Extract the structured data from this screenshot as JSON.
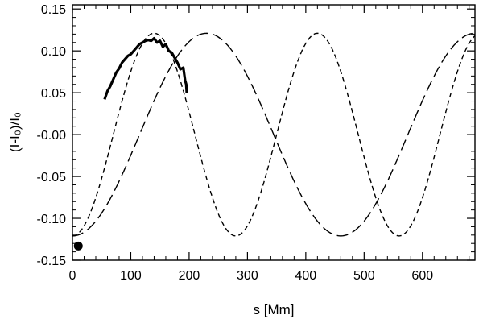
{
  "chart_data": {
    "type": "line",
    "xlabel": "s [Mm]",
    "ylabel": "(I-I₀)/I₀",
    "xlim": [
      0,
      690
    ],
    "ylim": [
      -0.15,
      0.155
    ],
    "x_ticks": [
      0,
      100,
      200,
      300,
      400,
      500,
      600
    ],
    "y_ticks": [
      0.15,
      0.1,
      0.05,
      0.0,
      -0.05,
      -0.1,
      -0.15
    ],
    "x_tick_labels": [
      "0",
      "100",
      "200",
      "300",
      "400",
      "500",
      "600"
    ],
    "y_tick_labels": [
      "0.15",
      "0.10",
      "0.05",
      "-0.00",
      "-0.05",
      "-0.10",
      "-0.15"
    ],
    "grid": false,
    "series": [
      {
        "style": "solid-thick",
        "color": "#000000",
        "points": [
          [
            55,
            0.042
          ],
          [
            60,
            0.052
          ],
          [
            65,
            0.058
          ],
          [
            70,
            0.066
          ],
          [
            75,
            0.074
          ],
          [
            80,
            0.079
          ],
          [
            85,
            0.086
          ],
          [
            90,
            0.09
          ],
          [
            95,
            0.094
          ],
          [
            100,
            0.096
          ],
          [
            105,
            0.1
          ],
          [
            110,
            0.104
          ],
          [
            115,
            0.108
          ],
          [
            120,
            0.11
          ],
          [
            125,
            0.112
          ],
          [
            130,
            0.113
          ],
          [
            135,
            0.112
          ],
          [
            140,
            0.115
          ],
          [
            145,
            0.11
          ],
          [
            150,
            0.112
          ],
          [
            155,
            0.105
          ],
          [
            160,
            0.108
          ],
          [
            165,
            0.1
          ],
          [
            170,
            0.098
          ],
          [
            175,
            0.092
          ],
          [
            180,
            0.086
          ],
          [
            185,
            0.078
          ],
          [
            190,
            0.08
          ],
          [
            193,
            0.065
          ],
          [
            195,
            0.06
          ],
          [
            196,
            0.05
          ]
        ]
      },
      {
        "style": "short-dash",
        "color": "#000000",
        "amplitude": 0.121,
        "offset": 0,
        "wavelength": 280,
        "phase_peak_x": 140,
        "x_range": [
          0,
          690
        ]
      },
      {
        "style": "long-dash",
        "color": "#000000",
        "amplitude": 0.121,
        "offset": 0,
        "wavelength": 460,
        "phase_peak_x": 230,
        "x_range": [
          0,
          690
        ]
      }
    ],
    "markers": [
      {
        "x": 10,
        "y": -0.133,
        "shape": "filled-circle",
        "color": "#000000"
      }
    ]
  }
}
